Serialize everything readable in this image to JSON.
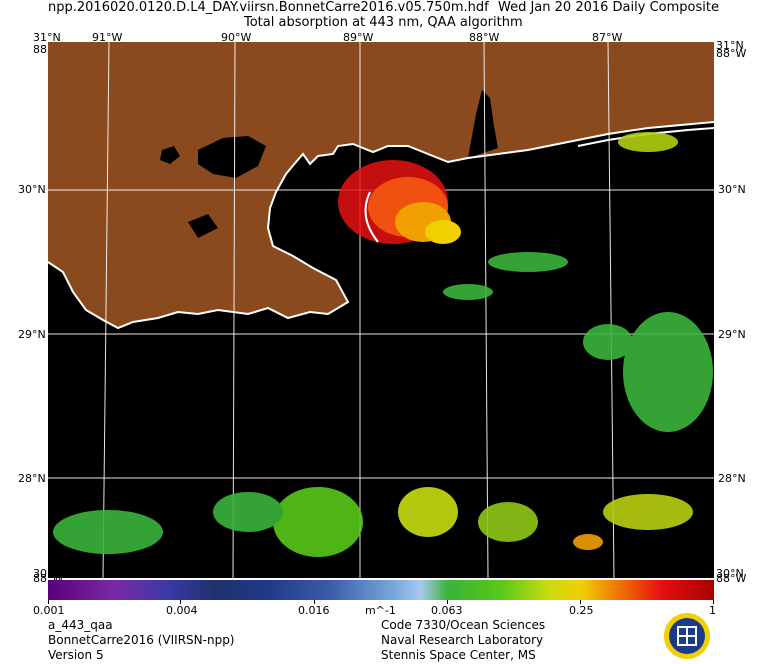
{
  "header": {
    "filename": "npp.2016020.0120.D.L4_DAY.viirsn.BonnetCarre2016.v05.750m.hdf",
    "date": "Wed Jan 20 2016 Daily Composite",
    "product_title": "Total absorption at 443 nm, QAA algorithm"
  },
  "map": {
    "lon_labels": [
      "91°W",
      "90°W",
      "89°W",
      "88°W",
      "87°W"
    ],
    "lat_labels": [
      "30°N",
      "29°N",
      "28°N"
    ],
    "corner_top_left_lat": "31°N",
    "corner_top_left_lon": "88°W",
    "corner_top_right_lat": "31°N",
    "corner_top_right_lon": "88°W",
    "corner_bottom_left_lat": "30°N",
    "corner_bottom_left_lon": "88°W",
    "corner_bottom_right_lat": "30°N",
    "corner_bottom_right_lon": "88°W",
    "colors": {
      "land": "#8b4a1e",
      "water": "#000000",
      "coast": "#ffffff",
      "grid": "#ffffff"
    }
  },
  "colorbar": {
    "ticks": [
      "0.001",
      "0.004",
      "0.016",
      "0.063",
      "0.25",
      "1"
    ],
    "units": "m^-1"
  },
  "footer": {
    "product_name": "a_443_qaa",
    "dataset": "BonnetCarre2016 (VIIRSN-npp)",
    "version": "Version 5",
    "org_line1": "Code 7330/Ocean Sciences",
    "org_line2": "Naval Research Laboratory",
    "org_line3": "Stennis Space Center, MS"
  }
}
